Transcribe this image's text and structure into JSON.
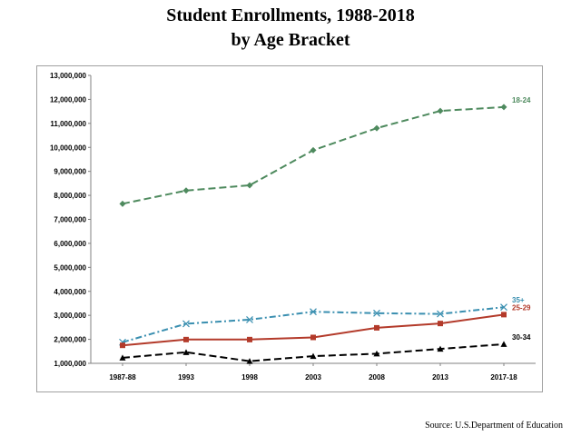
{
  "chart_data": {
    "type": "line",
    "title": "Student Enrollments, 1988-2018",
    "subtitle": "by Age Bracket",
    "categories": [
      "1987-88",
      "1993",
      "1998",
      "2003",
      "2008",
      "2013",
      "2017-18"
    ],
    "ylim": [
      1000000,
      13000000
    ],
    "yticks": [
      1000000,
      2000000,
      3000000,
      4000000,
      5000000,
      6000000,
      7000000,
      8000000,
      9000000,
      10000000,
      11000000,
      12000000,
      13000000
    ],
    "ytick_labels": [
      "1,000,000",
      "2,000,000",
      "3,000,000",
      "4,000,000",
      "5,000,000",
      "6,000,000",
      "7,000,000",
      "8,000,000",
      "9,000,000",
      "10,000,000",
      "11,000,000",
      "12,000,000",
      "13,000,000"
    ],
    "grid": false,
    "legend": "end-of-line labels",
    "series": [
      {
        "name": "18-24",
        "values": [
          7650000,
          8200000,
          8420000,
          9880000,
          10800000,
          11520000,
          11680000
        ],
        "color": "#4e8a5e",
        "style": "dashed",
        "marker": "diamond"
      },
      {
        "name": "35+",
        "values": [
          1880000,
          2650000,
          2820000,
          3150000,
          3090000,
          3060000,
          3340000
        ],
        "color": "#3a8fb0",
        "style": "dashdot",
        "marker": "x"
      },
      {
        "name": "25-29",
        "values": [
          1750000,
          1990000,
          1990000,
          2080000,
          2480000,
          2660000,
          3030000
        ],
        "color": "#b33a2a",
        "style": "solid",
        "marker": "square"
      },
      {
        "name": "30-34",
        "values": [
          1230000,
          1460000,
          1090000,
          1300000,
          1400000,
          1600000,
          1800000
        ],
        "color": "#000000",
        "style": "dashed",
        "marker": "triangle"
      }
    ]
  },
  "source_note": "Source: U.S.Department of Education"
}
